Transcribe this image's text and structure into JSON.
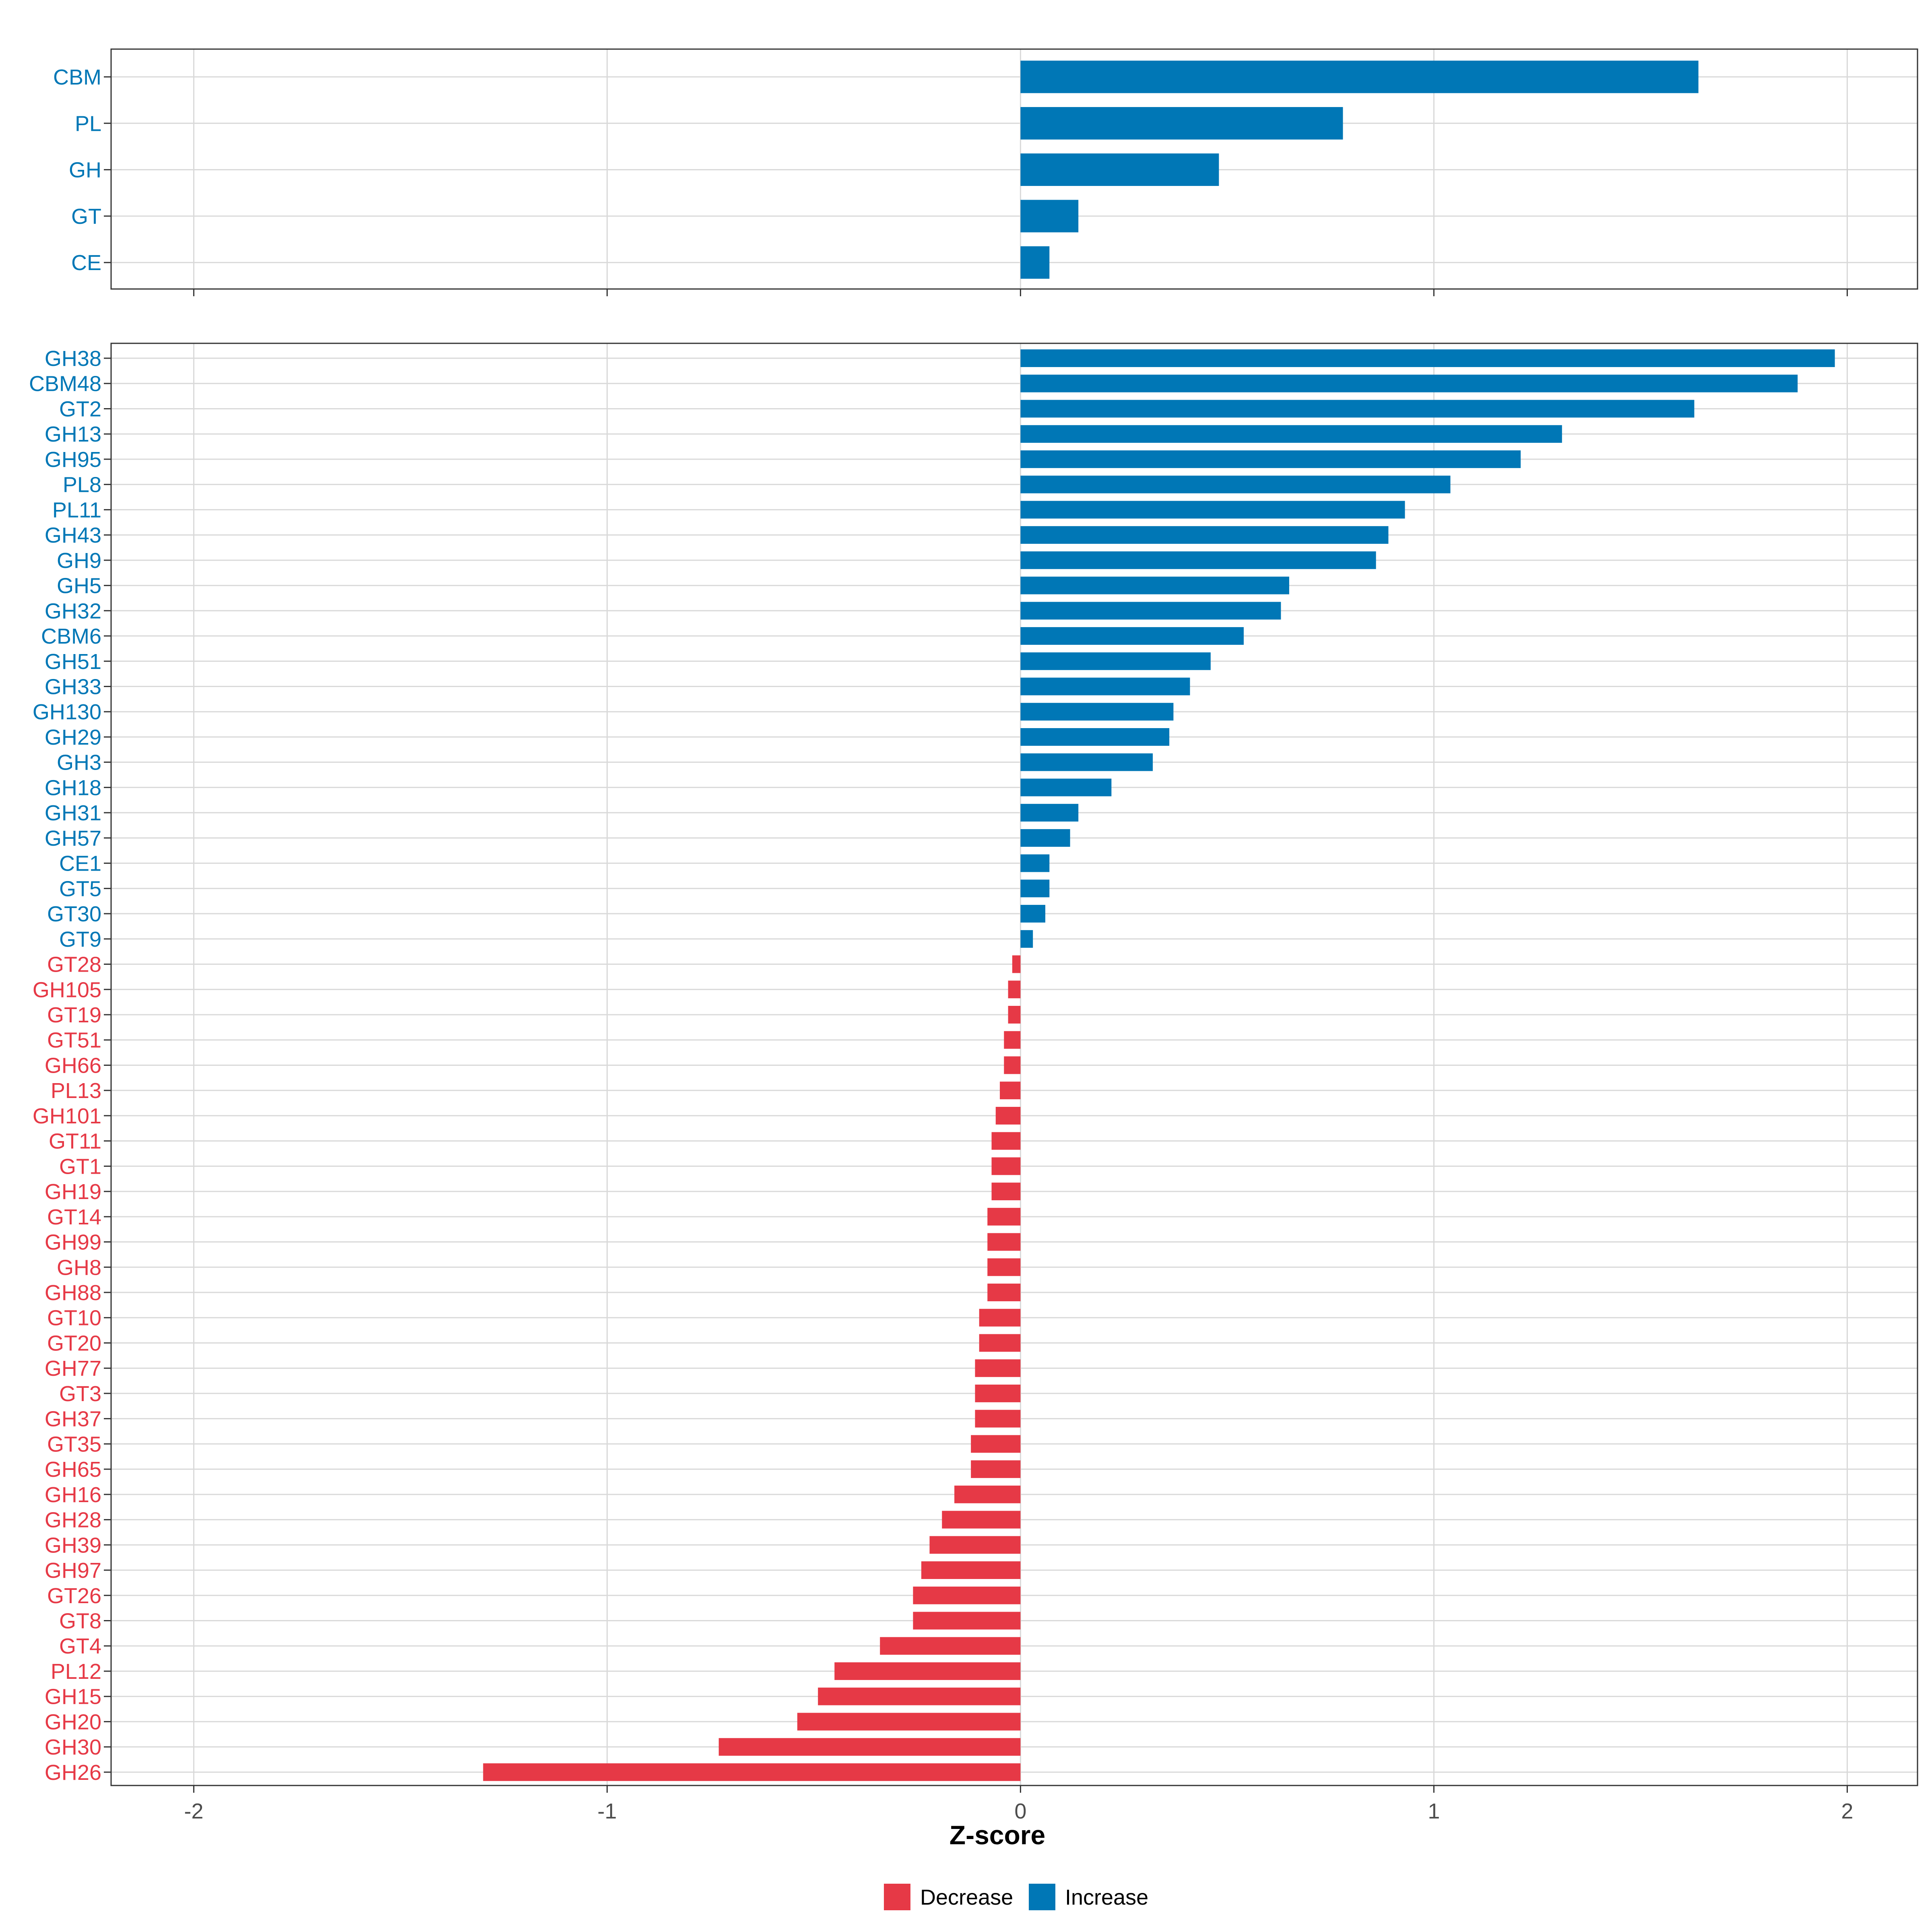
{
  "colors": {
    "increase": "#0077B6",
    "decrease": "#E63946",
    "grid": "#D9D9D9",
    "axis": "#333333"
  },
  "chart_data": [
    {
      "type": "bar",
      "orientation": "horizontal",
      "panel": "top",
      "categories": [
        "CBM",
        "PL",
        "GH",
        "GT",
        "CE"
      ],
      "values": [
        1.64,
        0.78,
        0.48,
        0.14,
        0.07
      ],
      "xlim": [
        -2.2,
        2.17
      ],
      "xticks": [
        -2,
        -1,
        0,
        1,
        2
      ],
      "grid": true
    },
    {
      "type": "bar",
      "orientation": "horizontal",
      "panel": "bottom",
      "categories": [
        "GH38",
        "CBM48",
        "GT2",
        "GH13",
        "GH95",
        "PL8",
        "PL11",
        "GH43",
        "GH9",
        "GH5",
        "GH32",
        "CBM6",
        "GH51",
        "GH33",
        "GH130",
        "GH29",
        "GH3",
        "GH18",
        "GH31",
        "GH57",
        "CE1",
        "GT5",
        "GT30",
        "GT9",
        "GT28",
        "GH105",
        "GT19",
        "GT51",
        "GH66",
        "PL13",
        "GH101",
        "GT11",
        "GT1",
        "GH19",
        "GT14",
        "GH99",
        "GH8",
        "GH88",
        "GT10",
        "GT20",
        "GH77",
        "GT3",
        "GH37",
        "GT35",
        "GH65",
        "GH16",
        "GH28",
        "GH39",
        "GH97",
        "GT26",
        "GT8",
        "GT4",
        "PL12",
        "GH15",
        "GH20",
        "GH30",
        "GH26"
      ],
      "values": [
        1.97,
        1.88,
        1.63,
        1.31,
        1.21,
        1.04,
        0.93,
        0.89,
        0.86,
        0.65,
        0.63,
        0.54,
        0.46,
        0.41,
        0.37,
        0.36,
        0.32,
        0.22,
        0.14,
        0.12,
        0.07,
        0.07,
        0.06,
        0.03,
        -0.02,
        -0.03,
        -0.03,
        -0.04,
        -0.04,
        -0.05,
        -0.06,
        -0.07,
        -0.07,
        -0.07,
        -0.08,
        -0.08,
        -0.08,
        -0.08,
        -0.1,
        -0.1,
        -0.11,
        -0.11,
        -0.11,
        -0.12,
        -0.12,
        -0.16,
        -0.19,
        -0.22,
        -0.24,
        -0.26,
        -0.26,
        -0.34,
        -0.45,
        -0.49,
        -0.54,
        -0.73,
        -1.3
      ],
      "xlim": [
        -2.2,
        2.17
      ],
      "xticks": [
        -2,
        -1,
        0,
        1,
        2
      ],
      "xtick_labels": [
        "-2",
        "-1",
        "0",
        "1",
        "2"
      ],
      "xlabel": "Z-score",
      "grid": true
    }
  ],
  "legend": {
    "position": "bottom",
    "items": [
      {
        "label": "Decrease",
        "color": "#E63946"
      },
      {
        "label": "Increase",
        "color": "#0077B6"
      }
    ]
  }
}
